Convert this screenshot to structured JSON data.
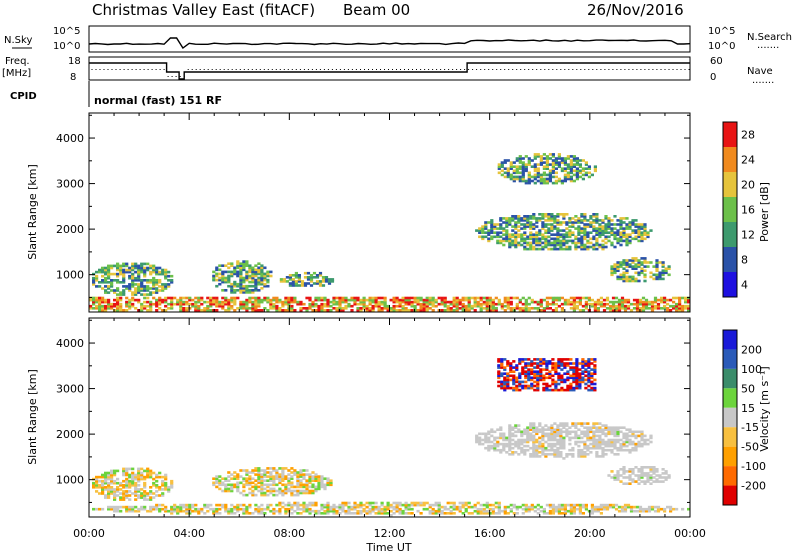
{
  "header": {
    "title": "Christmas Valley East (fitACF)",
    "beam": "Beam 00",
    "date": "26/Nov/2016"
  },
  "top_panels": {
    "nsky_label": "N.Sky",
    "nsearch_label": "N.Search",
    "nsky_ticks": [
      "10^5",
      "10^0"
    ],
    "nsearch_ticks": [
      "10^5",
      "10^0"
    ],
    "freq_label_1": "Freq.",
    "freq_label_2": "[MHz]",
    "freq_ticks": [
      "18",
      "8"
    ],
    "nave_label": "Nave",
    "nave_ticks": [
      "60",
      "0"
    ],
    "cpid_label": "CPID",
    "cpid_text": "normal (fast) 151 RF",
    "dots": "......."
  },
  "chart_data": [
    {
      "type": "heatmap",
      "name": "power",
      "ylabel": "Slant Range [km]",
      "ylim": [
        180,
        4550
      ],
      "yticks": [
        "4000",
        "3000",
        "2000",
        "1000"
      ],
      "colorbar_label": "Power [dB]",
      "colorbar_ticks": [
        "28",
        "24",
        "20",
        "16",
        "12",
        "8",
        "4"
      ],
      "colorbar_colors": [
        "#1e10e0",
        "#2a52a8",
        "#3d9a6e",
        "#6cc04a",
        "#e6c43c",
        "#f08a1e",
        "#e81414"
      ],
      "regions": [
        {
          "x": [
            0,
            3.3
          ],
          "y": [
            500,
            1250
          ],
          "level": "mid"
        },
        {
          "x": [
            4.8,
            7.3
          ],
          "y": [
            550,
            1300
          ],
          "level": "mid"
        },
        {
          "x": [
            7.5,
            9.7
          ],
          "y": [
            700,
            1050
          ],
          "level": "mid"
        },
        {
          "x": [
            0,
            24
          ],
          "y": [
            200,
            480
          ],
          "level": "high"
        },
        {
          "x": [
            16.2,
            20.2
          ],
          "y": [
            2950,
            3650
          ],
          "level": "mid"
        },
        {
          "x": [
            15.3,
            22.5
          ],
          "y": [
            1500,
            2350
          ],
          "level": "mid"
        },
        {
          "x": [
            20.7,
            23.2
          ],
          "y": [
            800,
            1350
          ],
          "level": "mid"
        }
      ]
    },
    {
      "type": "heatmap",
      "name": "velocity",
      "xlabel": "Time UT",
      "ylabel": "Slant Range [km]",
      "ylim": [
        180,
        4550
      ],
      "yticks": [
        "4000",
        "3000",
        "2000",
        "1000"
      ],
      "xticks": [
        "00:00",
        "04:00",
        "08:00",
        "12:00",
        "16:00",
        "20:00",
        "00:00"
      ],
      "colorbar_label": "Velocity [m s⁻¹]",
      "colorbar_ticks": [
        "200",
        "100",
        "50",
        "15",
        "-15",
        "-50",
        "-100",
        "-200"
      ],
      "colorbar_colors": [
        "#e00000",
        "#ff6a00",
        "#ffa000",
        "#f8c040",
        "#c8c8c8",
        "#6cd43c",
        "#3a8c6a",
        "#2a5ab8",
        "#1a1ad8"
      ],
      "regions": [
        {
          "x": [
            0,
            3.3
          ],
          "y": [
            500,
            1250
          ],
          "level": "low"
        },
        {
          "x": [
            4.8,
            9.7
          ],
          "y": [
            600,
            1250
          ],
          "level": "low"
        },
        {
          "x": [
            0,
            24
          ],
          "y": [
            200,
            480
          ],
          "level": "low"
        },
        {
          "x": [
            16.3,
            20.2
          ],
          "y": [
            2950,
            3650
          ],
          "level": "high"
        },
        {
          "x": [
            15.3,
            22.5
          ],
          "y": [
            1450,
            2250
          ],
          "level": "zero"
        },
        {
          "x": [
            20.7,
            23.2
          ],
          "y": [
            850,
            1300
          ],
          "level": "zero"
        }
      ]
    }
  ]
}
